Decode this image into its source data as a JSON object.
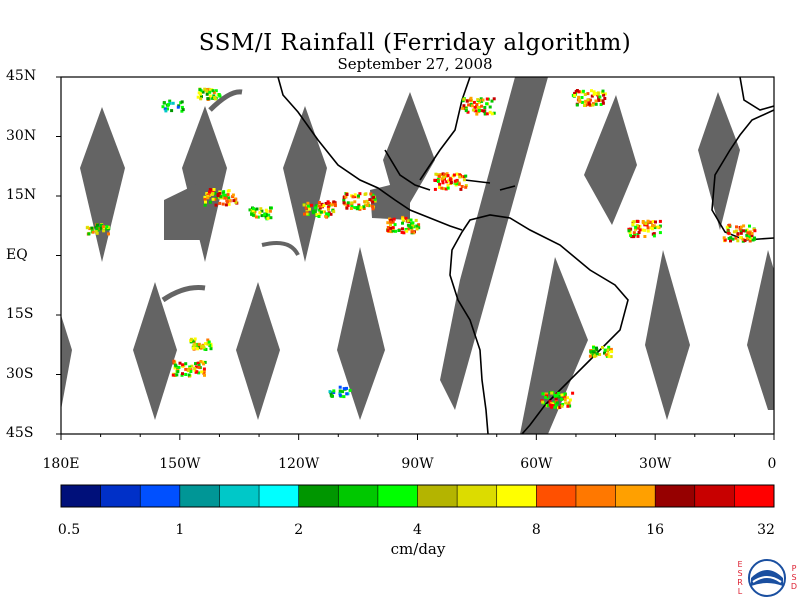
{
  "title": "SSM/I Rainfall (Ferriday algorithm)",
  "subtitle": "September 27, 2008",
  "lat_labels": [
    "45N",
    "30N",
    "15N",
    "EQ",
    "15S",
    "30S",
    "45S"
  ],
  "lon_labels": [
    "180E",
    "150W",
    "120W",
    "90W",
    "60W",
    "30W",
    "0"
  ],
  "colorbar": {
    "unit": "cm/day",
    "tick_labels": [
      "0.5",
      "1",
      "2",
      "4",
      "8",
      "16",
      "32"
    ],
    "colors": [
      "#00107a",
      "#0030c8",
      "#0050ff",
      "#009696",
      "#00c8c8",
      "#00ffff",
      "#009600",
      "#00c800",
      "#00ff00",
      "#b4b400",
      "#dcdc00",
      "#ffff00",
      "#ff5000",
      "#ff7800",
      "#ffa000",
      "#960000",
      "#c80000",
      "#ff0000"
    ]
  },
  "map": {
    "lon_range": [
      -180,
      0
    ],
    "lat_range": [
      -45,
      45
    ],
    "swath_color": "#646464",
    "rain_cells": [
      {
        "lon": -171,
        "lat": 7,
        "intensity": "moderate"
      },
      {
        "lon": -143,
        "lat": 41,
        "intensity": "moderate"
      },
      {
        "lon": -152,
        "lat": 38,
        "intensity": "light"
      },
      {
        "lon": -140,
        "lat": 15,
        "intensity": "heavy"
      },
      {
        "lon": -130,
        "lat": 11,
        "intensity": "moderate"
      },
      {
        "lon": -115,
        "lat": 12,
        "intensity": "heavy"
      },
      {
        "lon": -105,
        "lat": 14,
        "intensity": "heavy"
      },
      {
        "lon": -94,
        "lat": 8,
        "intensity": "heavy"
      },
      {
        "lon": -82,
        "lat": 19,
        "intensity": "heavy"
      },
      {
        "lon": -75,
        "lat": 38,
        "intensity": "heavy"
      },
      {
        "lon": -47,
        "lat": 40,
        "intensity": "heavy"
      },
      {
        "lon": -33,
        "lat": 7,
        "intensity": "heavy"
      },
      {
        "lon": -9,
        "lat": 6,
        "intensity": "heavy"
      },
      {
        "lon": -148,
        "lat": -28,
        "intensity": "heavy"
      },
      {
        "lon": -145,
        "lat": -22,
        "intensity": "moderate"
      },
      {
        "lon": -110,
        "lat": -34,
        "intensity": "light"
      },
      {
        "lon": -44,
        "lat": -24,
        "intensity": "moderate"
      },
      {
        "lon": -55,
        "lat": -36,
        "intensity": "heavy"
      }
    ]
  }
}
